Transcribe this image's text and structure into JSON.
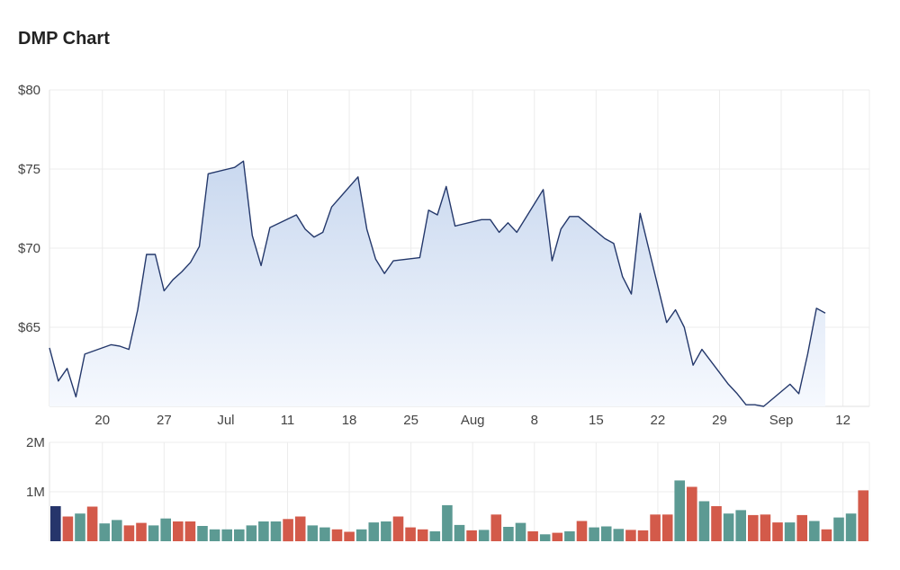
{
  "title": "DMP Chart",
  "chart_data": [
    {
      "type": "area",
      "title": "DMP Chart",
      "ylim": [
        60,
        80
      ],
      "yticks": [
        65,
        70,
        75,
        80
      ],
      "ytick_labels": [
        "$65",
        "$70",
        "$75",
        "$80"
      ],
      "x": [
        "Jun 14",
        "Jun 15",
        "Jun 16",
        "Jun 17",
        "Jun 18",
        "Jun 19",
        "Jun 20",
        "Jun 21",
        "Jun 22",
        "Jun 23",
        "Jun 24",
        "Jun 25",
        "Jun 26",
        "Jun 27",
        "Jun 28",
        "Jun 29",
        "Jun 30",
        "Jul 1",
        "Jul 2",
        "Jul 3",
        "Jul 4",
        "Jul 5",
        "Jul 6",
        "Jul 7",
        "Jul 8",
        "Jul 9",
        "Jul 10",
        "Jul 11",
        "Jul 12",
        "Jul 13",
        "Jul 14",
        "Jul 15",
        "Jul 16",
        "Jul 17",
        "Jul 18",
        "Jul 19",
        "Jul 20",
        "Jul 21",
        "Jul 22",
        "Jul 23",
        "Jul 24",
        "Jul 25",
        "Jul 26",
        "Jul 27",
        "Jul 28",
        "Jul 29",
        "Jul 30",
        "Jul 31",
        "Aug 1",
        "Aug 2",
        "Aug 3",
        "Aug 4",
        "Aug 5",
        "Aug 6",
        "Aug 7",
        "Aug 8",
        "Aug 9",
        "Aug 10",
        "Aug 11",
        "Aug 12",
        "Aug 13",
        "Aug 14",
        "Aug 15",
        "Aug 16",
        "Aug 17",
        "Aug 18",
        "Aug 19",
        "Aug 20",
        "Aug 21",
        "Aug 22",
        "Aug 23",
        "Aug 24",
        "Aug 25",
        "Aug 26",
        "Aug 27",
        "Aug 28",
        "Aug 29",
        "Aug 30",
        "Aug 31",
        "Sep 1",
        "Sep 2",
        "Sep 3",
        "Sep 4",
        "Sep 5",
        "Sep 6",
        "Sep 7",
        "Sep 8",
        "Sep 9",
        "Sep 10",
        "Sep 11",
        "Sep 12",
        "Sep 13",
        "Sep 14",
        "Sep 15"
      ],
      "xtick_labels": [
        {
          "x": "Jun 20",
          "label": "20"
        },
        {
          "x": "Jun 27",
          "label": "27"
        },
        {
          "x": "Jul 4",
          "label": "Jul"
        },
        {
          "x": "Jul 11",
          "label": "11"
        },
        {
          "x": "Jul 18",
          "label": "18"
        },
        {
          "x": "Jul 25",
          "label": "25"
        },
        {
          "x": "Aug 1",
          "label": "Aug"
        },
        {
          "x": "Aug 8",
          "label": "8"
        },
        {
          "x": "Aug 15",
          "label": "15"
        },
        {
          "x": "Aug 22",
          "label": "22"
        },
        {
          "x": "Aug 29",
          "label": "29"
        },
        {
          "x": "Sep 5",
          "label": "Sep"
        },
        {
          "x": "Sep 12",
          "label": "12"
        }
      ],
      "series": [
        {
          "points": [
            [
              "Jun 14",
              63.7
            ],
            [
              "Jun 15",
              61.6
            ],
            [
              "Jun 16",
              62.4
            ],
            [
              "Jun 17",
              60.6
            ],
            [
              "Jun 18",
              63.3
            ],
            [
              "Jun 21",
              63.9
            ],
            [
              "Jun 22",
              63.8
            ],
            [
              "Jun 23",
              63.6
            ],
            [
              "Jun 24",
              66.1
            ],
            [
              "Jun 25",
              69.6
            ],
            [
              "Jun 26",
              69.6
            ],
            [
              "Jun 27",
              67.3
            ],
            [
              "Jun 28",
              68.0
            ],
            [
              "Jun 29",
              68.5
            ],
            [
              "Jun 30",
              69.1
            ],
            [
              "Jul 1",
              70.1
            ],
            [
              "Jul 2",
              74.7
            ],
            [
              "Jul 5",
              75.1
            ],
            [
              "Jul 6",
              75.5
            ],
            [
              "Jul 7",
              70.8
            ],
            [
              "Jul 8",
              68.9
            ],
            [
              "Jul 9",
              71.3
            ],
            [
              "Jul 12",
              72.1
            ],
            [
              "Jul 13",
              71.2
            ],
            [
              "Jul 14",
              70.7
            ],
            [
              "Jul 15",
              71.0
            ],
            [
              "Jul 16",
              72.6
            ],
            [
              "Jul 19",
              74.5
            ],
            [
              "Jul 20",
              71.2
            ],
            [
              "Jul 21",
              69.3
            ],
            [
              "Jul 22",
              68.4
            ],
            [
              "Jul 23",
              69.2
            ],
            [
              "Jul 26",
              69.4
            ],
            [
              "Jul 27",
              72.4
            ],
            [
              "Jul 28",
              72.1
            ],
            [
              "Jul 29",
              73.9
            ],
            [
              "Jul 30",
              71.4
            ],
            [
              "Aug 2",
              71.8
            ],
            [
              "Aug 3",
              71.8
            ],
            [
              "Aug 4",
              71.0
            ],
            [
              "Aug 5",
              71.6
            ],
            [
              "Aug 6",
              71.0
            ],
            [
              "Aug 9",
              73.7
            ],
            [
              "Aug 10",
              69.2
            ],
            [
              "Aug 11",
              71.2
            ],
            [
              "Aug 12",
              72.0
            ],
            [
              "Aug 13",
              72.0
            ],
            [
              "Aug 16",
              70.6
            ],
            [
              "Aug 17",
              70.3
            ],
            [
              "Aug 18",
              68.2
            ],
            [
              "Aug 19",
              67.1
            ],
            [
              "Aug 20",
              72.2
            ],
            [
              "Aug 23",
              65.3
            ],
            [
              "Aug 24",
              66.1
            ],
            [
              "Aug 25",
              65.0
            ],
            [
              "Aug 26",
              62.6
            ],
            [
              "Aug 27",
              63.6
            ],
            [
              "Aug 30",
              61.4
            ],
            [
              "Aug 31",
              60.8
            ],
            [
              "Sep 1",
              60.1
            ],
            [
              "Sep 2",
              60.1
            ],
            [
              "Sep 3",
              60.0
            ],
            [
              "Sep 6",
              61.4
            ],
            [
              "Sep 7",
              60.8
            ],
            [
              "Sep 8",
              63.3
            ],
            [
              "Sep 9",
              66.2
            ],
            [
              "Sep 10",
              65.9
            ]
          ]
        }
      ],
      "colors": {
        "line": "#24386b",
        "fill_top": "#c9d8ef",
        "fill_bottom": "#f6f9fe"
      },
      "grid": true
    },
    {
      "type": "bar",
      "ylim": [
        0,
        2000000
      ],
      "yticks": [
        1000000,
        2000000
      ],
      "ytick_labels": [
        "1M",
        "2M"
      ],
      "values": [
        710000,
        500000,
        560000,
        700000,
        360000,
        430000,
        320000,
        370000,
        320000,
        460000,
        400000,
        400000,
        310000,
        240000,
        240000,
        240000,
        320000,
        400000,
        400000,
        450000,
        500000,
        320000,
        280000,
        240000,
        190000,
        240000,
        380000,
        400000,
        500000,
        280000,
        240000,
        200000,
        730000,
        330000,
        220000,
        230000,
        540000,
        290000,
        370000,
        200000,
        140000,
        170000,
        200000,
        410000,
        280000,
        300000,
        250000,
        230000,
        220000,
        540000,
        540000,
        1230000,
        1100000,
        810000,
        710000,
        560000,
        630000,
        530000,
        540000,
        380000,
        380000,
        530000,
        410000,
        240000,
        480000,
        560000,
        1030000
      ],
      "colors": [
        "#26356b",
        "#d35a4a",
        "#5c9a93",
        "#d35a4a",
        "#5c9a93",
        "#5c9a93",
        "#d35a4a",
        "#d35a4a",
        "#5c9a93",
        "#5c9a93",
        "#d35a4a",
        "#d35a4a",
        "#5c9a93",
        "#5c9a93",
        "#5c9a93",
        "#5c9a93",
        "#5c9a93",
        "#5c9a93",
        "#5c9a93",
        "#d35a4a",
        "#d35a4a",
        "#5c9a93",
        "#5c9a93",
        "#d35a4a",
        "#d35a4a",
        "#5c9a93",
        "#5c9a93",
        "#5c9a93",
        "#d35a4a",
        "#d35a4a",
        "#d35a4a",
        "#5c9a93",
        "#5c9a93",
        "#5c9a93",
        "#d35a4a",
        "#5c9a93",
        "#d35a4a",
        "#5c9a93",
        "#5c9a93",
        "#d35a4a",
        "#5c9a93",
        "#d35a4a",
        "#5c9a93",
        "#d35a4a",
        "#5c9a93",
        "#5c9a93",
        "#5c9a93",
        "#d35a4a",
        "#d35a4a",
        "#d35a4a",
        "#d35a4a",
        "#5c9a93",
        "#d35a4a",
        "#5c9a93",
        "#d35a4a",
        "#5c9a93",
        "#5c9a93",
        "#d35a4a",
        "#d35a4a",
        "#d35a4a",
        "#5c9a93",
        "#d35a4a",
        "#5c9a93",
        "#d35a4a",
        "#5c9a93",
        "#5c9a93",
        "#d35a4a"
      ],
      "grid": true
    }
  ]
}
